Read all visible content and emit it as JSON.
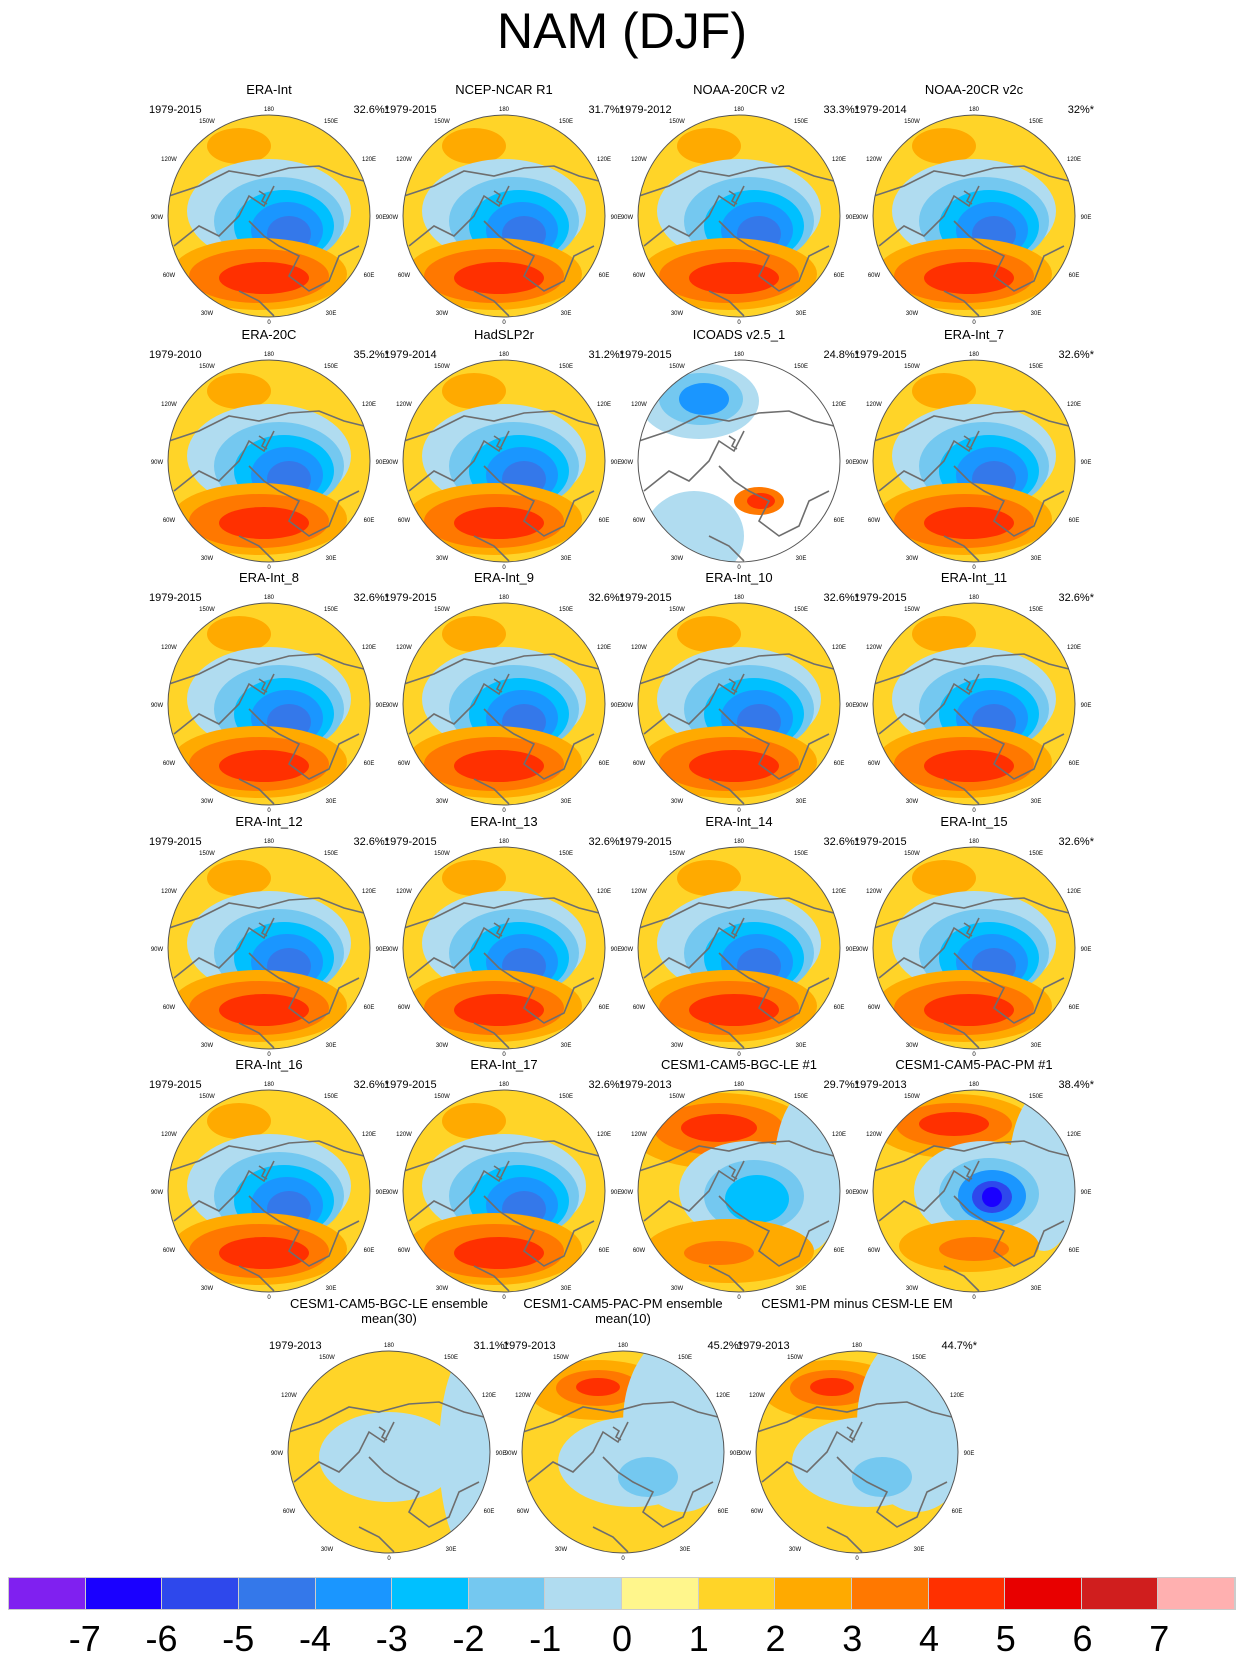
{
  "title": "NAM (DJF)",
  "lon_labels": [
    "180",
    "150W",
    "150E",
    "120W",
    "120E",
    "90W",
    "90E",
    "60W",
    "60E",
    "30W",
    "30E",
    "0"
  ],
  "panels": [
    {
      "title": "ERA-Int",
      "years": "1979-2015",
      "pct": "32.6%*"
    },
    {
      "title": "NCEP-NCAR R1",
      "years": "1979-2015",
      "pct": "31.7%*"
    },
    {
      "title": "NOAA-20CR v2",
      "years": "1979-2012",
      "pct": "33.3%*"
    },
    {
      "title": "NOAA-20CR v2c",
      "years": "1979-2014",
      "pct": "32%*"
    },
    {
      "title": "ERA-20C",
      "years": "1979-2010",
      "pct": "35.2%*"
    },
    {
      "title": "HadSLP2r",
      "years": "1979-2014",
      "pct": "31.2%*"
    },
    {
      "title": "ICOADS v2.5_1",
      "years": "1979-2015",
      "pct": "24.8%*"
    },
    {
      "title": "ERA-Int_7",
      "years": "1979-2015",
      "pct": "32.6%*"
    },
    {
      "title": "ERA-Int_8",
      "years": "1979-2015",
      "pct": "32.6%*"
    },
    {
      "title": "ERA-Int_9",
      "years": "1979-2015",
      "pct": "32.6%*"
    },
    {
      "title": "ERA-Int_10",
      "years": "1979-2015",
      "pct": "32.6%*"
    },
    {
      "title": "ERA-Int_11",
      "years": "1979-2015",
      "pct": "32.6%*"
    },
    {
      "title": "ERA-Int_12",
      "years": "1979-2015",
      "pct": "32.6%*"
    },
    {
      "title": "ERA-Int_13",
      "years": "1979-2015",
      "pct": "32.6%*"
    },
    {
      "title": "ERA-Int_14",
      "years": "1979-2015",
      "pct": "32.6%*"
    },
    {
      "title": "ERA-Int_15",
      "years": "1979-2015",
      "pct": "32.6%*"
    },
    {
      "title": "ERA-Int_16",
      "years": "1979-2015",
      "pct": "32.6%*"
    },
    {
      "title": "ERA-Int_17",
      "years": "1979-2015",
      "pct": "32.6%*"
    },
    {
      "title": "CESM1-CAM5-BGC-LE #1",
      "years": "1979-2013",
      "pct": "29.7%*"
    },
    {
      "title": "CESM1-CAM5-PAC-PM #1",
      "years": "1979-2013",
      "pct": "38.4%*"
    },
    {
      "title": "CESM1-CAM5-BGC-LE ensemble mean(30)",
      "years": "1979-2013",
      "pct": "31.1%*"
    },
    {
      "title": "CESM1-CAM5-PAC-PM ensemble mean(10)",
      "years": "1979-2013",
      "pct": "45.2%*"
    },
    {
      "title": "CESM1-PM minus CESM-LE EM",
      "years": "1979-2013",
      "pct": "44.7%*"
    }
  ],
  "chart_data": {
    "type": "heatmap",
    "title": "NAM (DJF)",
    "projection": "north polar stereographic",
    "colorbar": {
      "ticks": [
        "-7",
        "-6",
        "-5",
        "-4",
        "-3",
        "-2",
        "-1",
        "0",
        "1",
        "2",
        "3",
        "4",
        "5",
        "6",
        "7"
      ],
      "colors": [
        "#8020f0",
        "#1a00ff",
        "#2e48ec",
        "#3478ea",
        "#1a96ff",
        "#00c0ff",
        "#74c8f0",
        "#b0dcf0",
        "#fff68c",
        "#ffd428",
        "#ffaa00",
        "#ff7800",
        "#ff3000",
        "#e80000",
        "#d01e1e",
        "#ffb0b0"
      ]
    }
  }
}
